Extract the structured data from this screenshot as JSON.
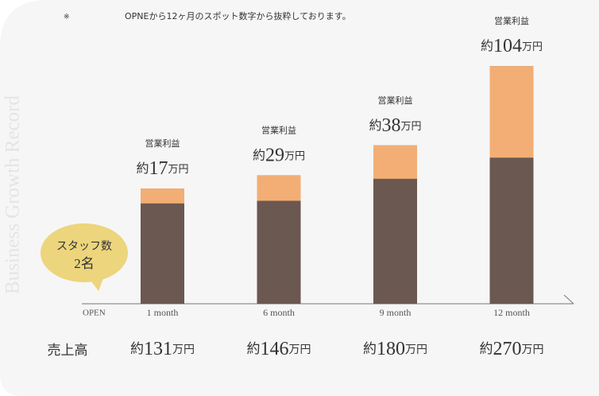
{
  "chart_data": {
    "type": "bar",
    "note_mark": "※",
    "note": "OPNEから12ヶ月のスポット数字から抜粋しております。",
    "side_title": "Business Growth Record",
    "origin_label": "OPEN",
    "categories": [
      "1 month",
      "6 month",
      "9 month",
      "12 month"
    ],
    "series": [
      {
        "name": "売上高",
        "color": "#6b5850",
        "values": [
          131,
          146,
          180,
          270
        ]
      },
      {
        "name": "営業利益",
        "color": "#f2ae74",
        "values": [
          17,
          29,
          38,
          104
        ]
      }
    ],
    "label_prefix": "約",
    "label_unit": "万円",
    "staff_label": "スタッフ数",
    "staff_count": "2名",
    "ylim": [
      0,
      300
    ]
  }
}
